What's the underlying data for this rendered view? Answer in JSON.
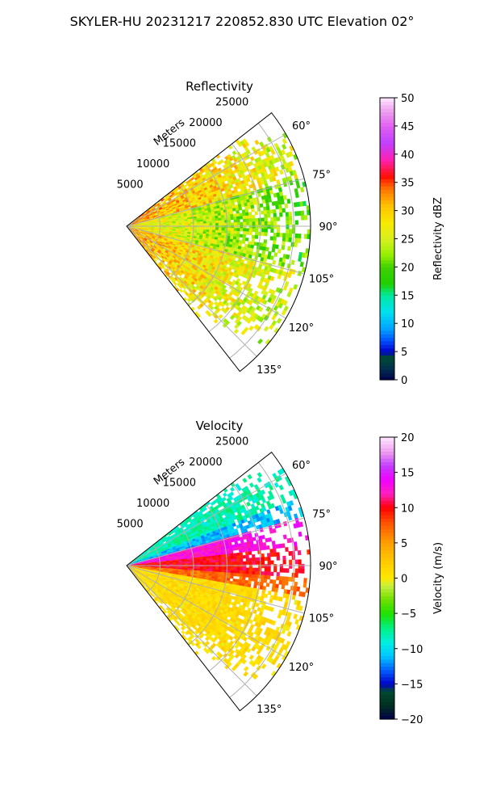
{
  "figure": {
    "suptitle": "SKYLER-HU  20231217  220852.830 UTC Elevation 02°"
  },
  "chart_data": [
    {
      "type": "heatmap",
      "projection": "polar-sector",
      "title": "Reflectivity",
      "radial_label": "Meters",
      "radial_ticks": [
        5000,
        10000,
        15000,
        20000,
        25000
      ],
      "radial_tick_labels": [
        "5000",
        "10000",
        "15000",
        "20000",
        "25000"
      ],
      "r_max": 27500,
      "azimuth_range": [
        52,
        142
      ],
      "azimuth_ticks": [
        60,
        75,
        90,
        105,
        120,
        135
      ],
      "azimuth_tick_labels": [
        "60°",
        "75°",
        "90°",
        "105°",
        "120°",
        "135°"
      ],
      "grid": true,
      "colorbar": {
        "label": "Reflectivity dBZ",
        "min": 0,
        "max": 50,
        "ticks": [
          0,
          5,
          10,
          15,
          20,
          25,
          30,
          35,
          40,
          45,
          50
        ],
        "tick_labels": [
          "0",
          "5",
          "10",
          "15",
          "20",
          "25",
          "30",
          "35",
          "40",
          "45",
          "50"
        ],
        "stops": [
          {
            "v": 0,
            "c": "#00004a"
          },
          {
            "v": 2,
            "c": "#003050"
          },
          {
            "v": 4,
            "c": "#004a30"
          },
          {
            "v": 5,
            "c": "#0000c8"
          },
          {
            "v": 7,
            "c": "#0050ff"
          },
          {
            "v": 9,
            "c": "#00a0ff"
          },
          {
            "v": 12,
            "c": "#00e0f0"
          },
          {
            "v": 15,
            "c": "#00e8a0"
          },
          {
            "v": 17,
            "c": "#20d000"
          },
          {
            "v": 20,
            "c": "#40d000"
          },
          {
            "v": 22,
            "c": "#90ee00"
          },
          {
            "v": 25,
            "c": "#d8f020"
          },
          {
            "v": 28,
            "c": "#f8e800"
          },
          {
            "v": 31,
            "c": "#ffc000"
          },
          {
            "v": 34,
            "c": "#ff7000"
          },
          {
            "v": 36,
            "c": "#ff1000"
          },
          {
            "v": 39,
            "c": "#ff20b0"
          },
          {
            "v": 42,
            "c": "#c040ff"
          },
          {
            "v": 45,
            "c": "#e060f0"
          },
          {
            "v": 48,
            "c": "#f0a8f0"
          },
          {
            "v": 50,
            "c": "#ffe8ff"
          }
        ]
      },
      "echo_field_dBZ": {
        "description_sectors_azimuth_deg": [
          [
            52,
            75
          ],
          [
            75,
            105
          ],
          [
            105,
            142
          ]
        ],
        "typical_values_near_range": [
          33,
          28,
          32
        ],
        "typical_values_far_range": [
          25,
          20,
          24
        ]
      }
    },
    {
      "type": "heatmap",
      "projection": "polar-sector",
      "title": "Velocity",
      "radial_label": "Meters",
      "radial_ticks": [
        5000,
        10000,
        15000,
        20000,
        25000
      ],
      "radial_tick_labels": [
        "5000",
        "10000",
        "15000",
        "20000",
        "25000"
      ],
      "r_max": 27500,
      "azimuth_range": [
        52,
        142
      ],
      "azimuth_ticks": [
        60,
        75,
        90,
        105,
        120,
        135
      ],
      "azimuth_tick_labels": [
        "60°",
        "75°",
        "90°",
        "105°",
        "120°",
        "135°"
      ],
      "grid": true,
      "colorbar": {
        "label": "Velocity (m/s)",
        "min": -20,
        "max": 20,
        "ticks": [
          -20,
          -15,
          -10,
          -5,
          0,
          5,
          10,
          15,
          20
        ],
        "tick_labels": [
          "−20",
          "−15",
          "−10",
          "−5",
          "0",
          "5",
          "10",
          "15",
          "20"
        ],
        "stops": [
          {
            "v": -20,
            "c": "#00004a"
          },
          {
            "v": -18,
            "c": "#003020"
          },
          {
            "v": -16,
            "c": "#004a30"
          },
          {
            "v": -15,
            "c": "#0000c8"
          },
          {
            "v": -13,
            "c": "#0060ff"
          },
          {
            "v": -11,
            "c": "#00c8ff"
          },
          {
            "v": -9,
            "c": "#00f0e0"
          },
          {
            "v": -7,
            "c": "#00f080"
          },
          {
            "v": -5,
            "c": "#20e000"
          },
          {
            "v": -3,
            "c": "#70e000"
          },
          {
            "v": -1,
            "c": "#c8f040"
          },
          {
            "v": 0,
            "c": "#ffe800"
          },
          {
            "v": 2,
            "c": "#ffd000"
          },
          {
            "v": 5,
            "c": "#ffa000"
          },
          {
            "v": 8,
            "c": "#ff5000"
          },
          {
            "v": 10,
            "c": "#ff0000"
          },
          {
            "v": 12,
            "c": "#ff20c0"
          },
          {
            "v": 14,
            "c": "#f000ff"
          },
          {
            "v": 16,
            "c": "#c040ff"
          },
          {
            "v": 18,
            "c": "#f0a0f0"
          },
          {
            "v": 20,
            "c": "#ffe8ff"
          }
        ]
      },
      "velocity_field_ms": {
        "azimuth_bands_deg": [
          [
            52,
            68
          ],
          [
            68,
            74
          ],
          [
            74,
            84
          ],
          [
            84,
            94
          ],
          [
            94,
            100
          ],
          [
            100,
            142
          ]
        ],
        "values": [
          -8,
          -11,
          13,
          10,
          7,
          1
        ]
      }
    }
  ]
}
